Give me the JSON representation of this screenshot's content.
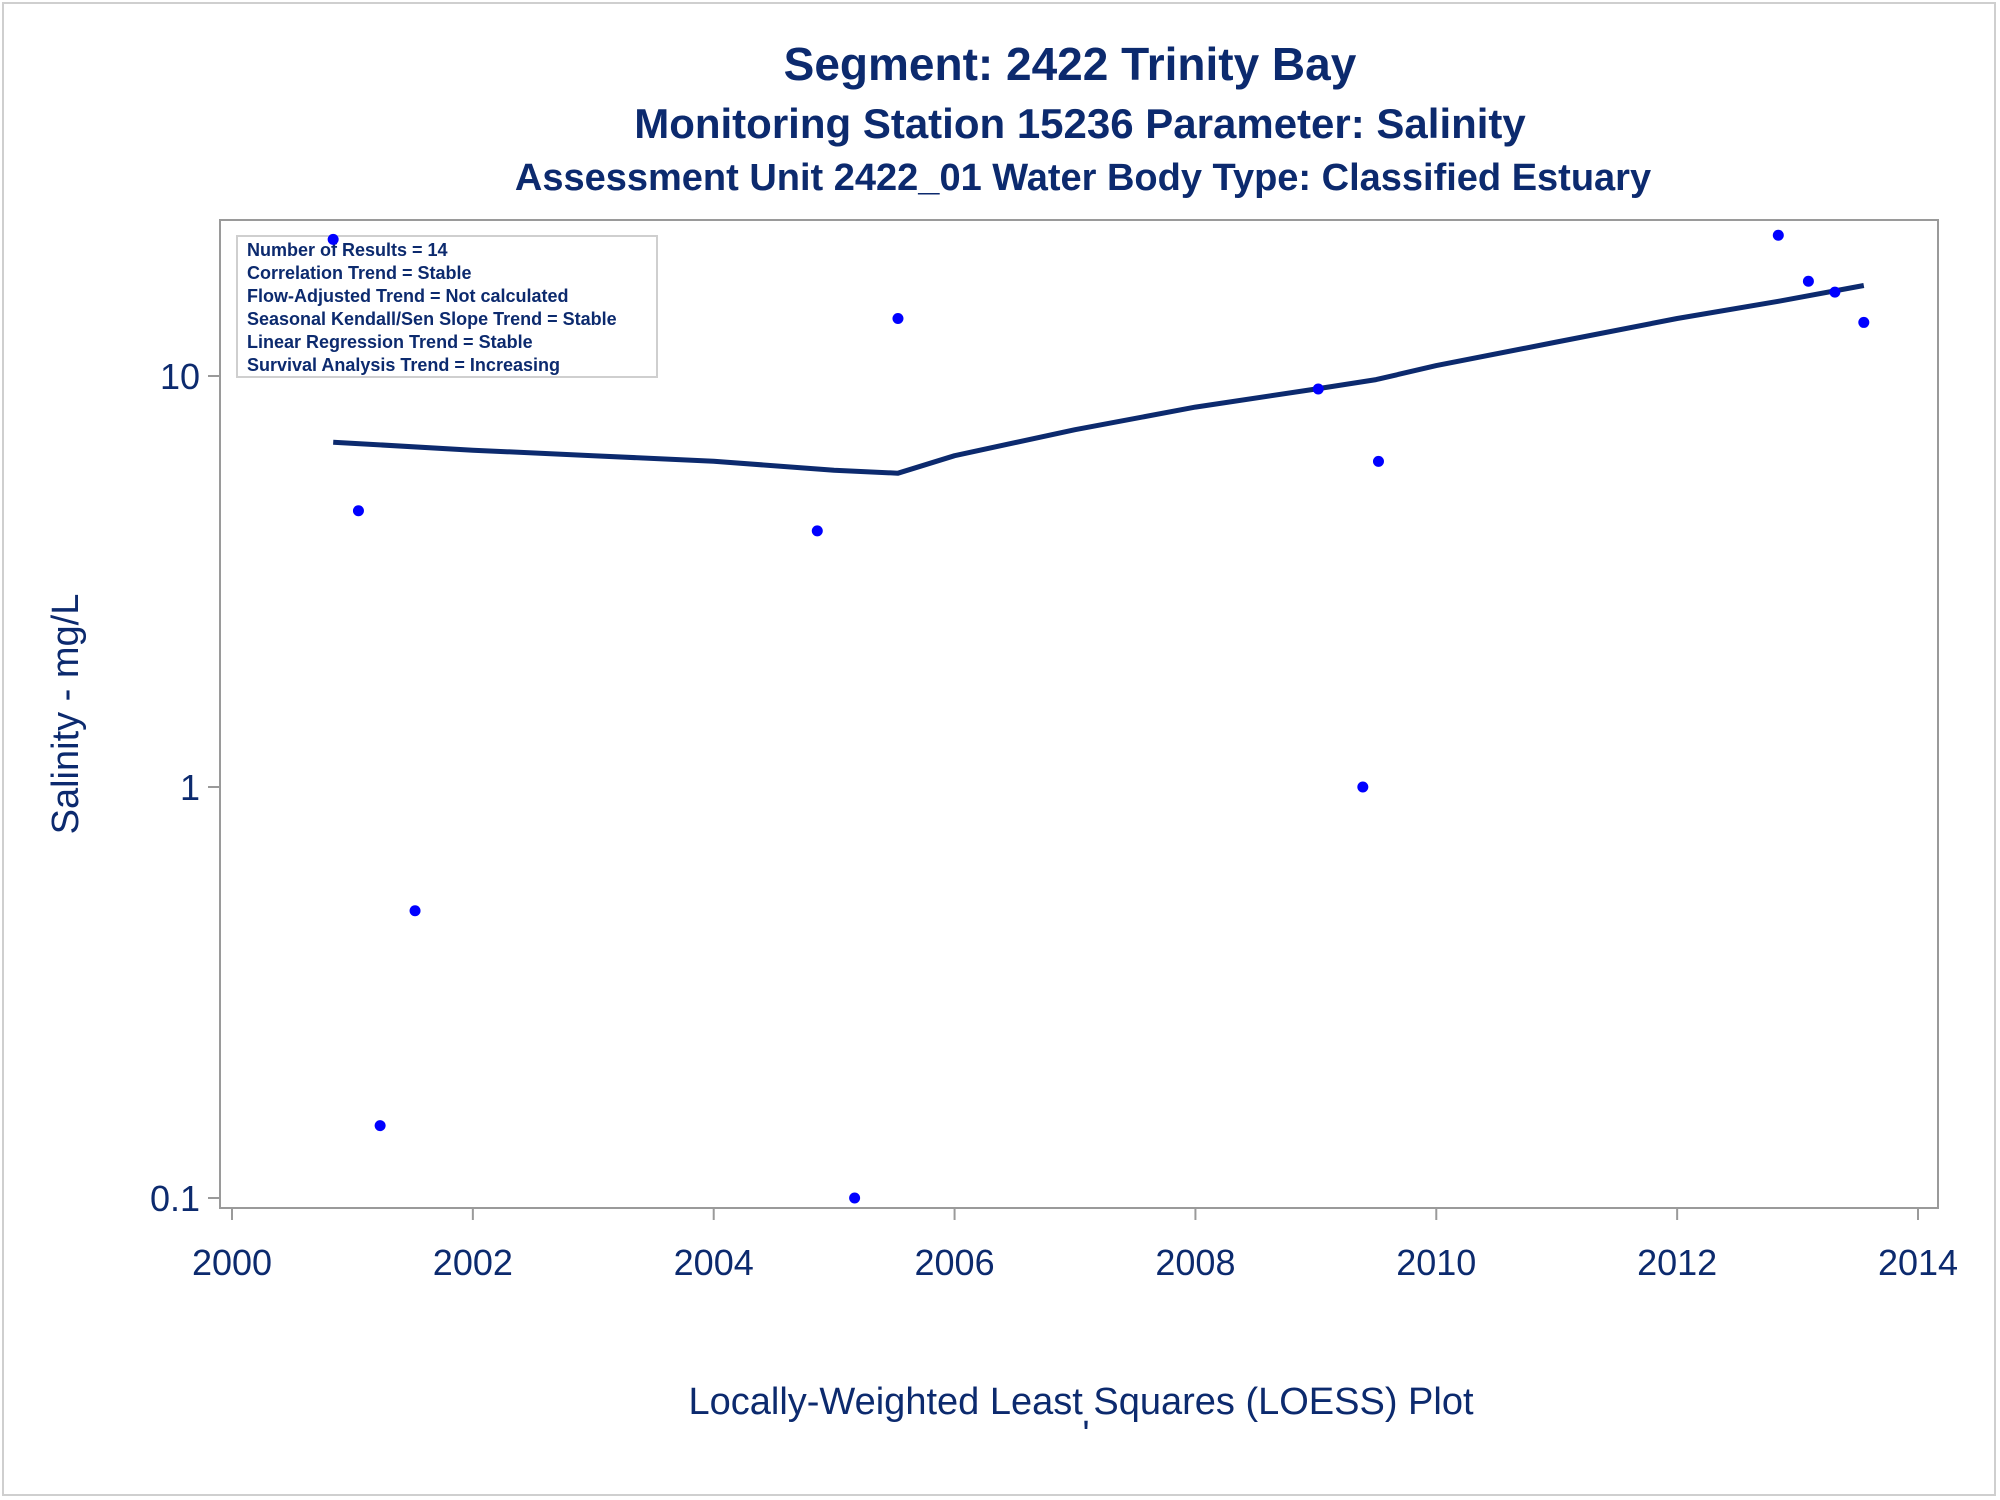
{
  "chart_data": {
    "type": "scatter",
    "title": "Segment: 2422  Trinity Bay",
    "subtitle": "Monitoring Station 15236 Parameter: Salinity",
    "subtitle2": "Assessment Unit 2422_01   Water Body Type: Classified Estuary",
    "xlabel": "Locally-Weighted Least Squares (LOESS) Plot",
    "footnote": "'",
    "ylabel": "Salinity - mg/L",
    "y_scale": "log",
    "xlim": [
      2000,
      2014
    ],
    "ylim": [
      0.1,
      20
    ],
    "x_ticks": [
      2000,
      2002,
      2004,
      2006,
      2008,
      2010,
      2012,
      2014
    ],
    "x_tick_labels": [
      "2000",
      "2002",
      "2004",
      "2006",
      "2008",
      "2010",
      "2012",
      "2014"
    ],
    "y_ticks": [
      0.1,
      1,
      10
    ],
    "y_tick_labels": [
      "0.1",
      "1",
      "10"
    ],
    "grid": false,
    "legend_position": "top-left",
    "annotation_box": [
      "Number of Results = 14",
      "Correlation Trend = Stable",
      "Flow-Adjusted Trend = Not calculated",
      "Seasonal Kendall/Sen Slope Trend = Stable",
      "Linear Regression Trend = Stable",
      "Survival Analysis Trend = Increasing"
    ],
    "series": [
      {
        "type": "scatter",
        "x": [
          2000.84,
          2001.05,
          2001.23,
          2001.52,
          2004.86,
          2005.17,
          2005.53,
          2009.02,
          2009.39,
          2009.52,
          2012.84,
          2013.09,
          2013.31,
          2013.55
        ],
        "y": [
          21.5,
          4.7,
          0.15,
          0.5,
          4.2,
          0.1,
          13.8,
          9.3,
          1.0,
          6.2,
          22.0,
          17.0,
          16.0,
          13.5
        ]
      },
      {
        "type": "line",
        "x": [
          2000.84,
          2002.0,
          2003.0,
          2004.0,
          2005.0,
          2005.53,
          2006.0,
          2007.0,
          2008.0,
          2009.0,
          2009.5,
          2010.0,
          2011.0,
          2012.0,
          2012.84,
          2013.55
        ],
        "y": [
          6.9,
          6.6,
          6.4,
          6.2,
          5.9,
          5.8,
          6.4,
          7.4,
          8.4,
          9.3,
          9.8,
          10.6,
          12.1,
          13.8,
          15.2,
          16.6
        ]
      }
    ],
    "colors": {
      "text": "#0c2a6e",
      "markers": "#0000ff",
      "line": "#0c2a6e",
      "frame": "#9a9a9a"
    }
  }
}
